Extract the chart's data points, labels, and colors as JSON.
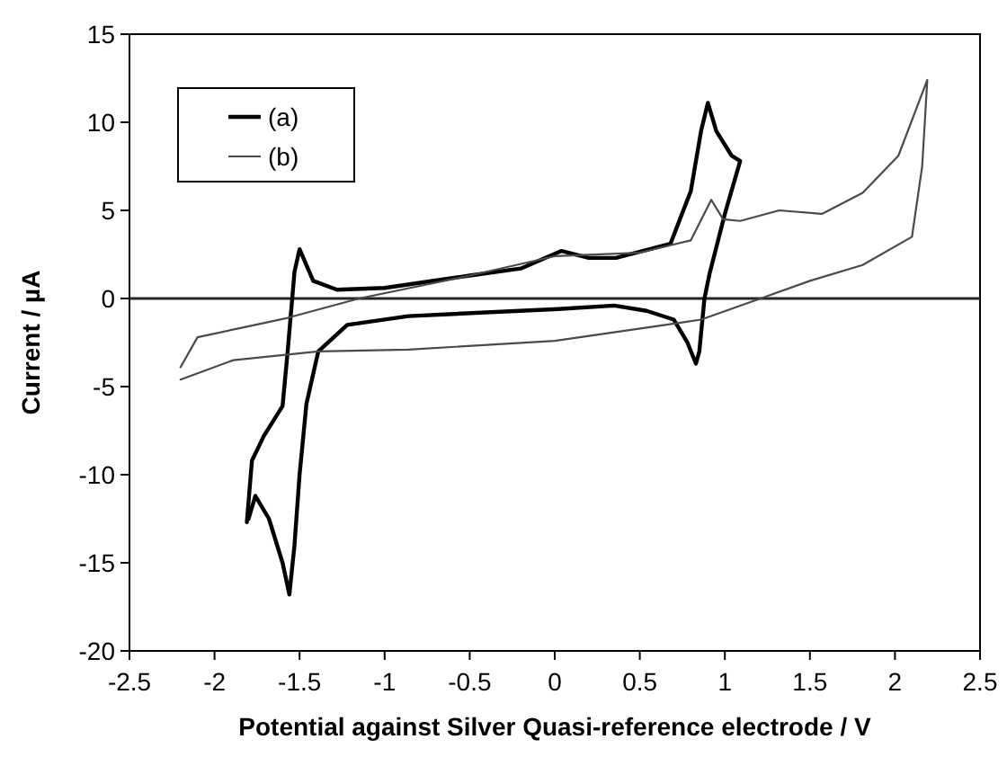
{
  "chart_data": {
    "type": "line",
    "xlabel": "Potential against Silver Quasi-reference electrode / V",
    "ylabel": "Current / µA",
    "xlim": [
      -2.5,
      2.5
    ],
    "xticks": [
      -2.5,
      -2,
      -1.5,
      -1,
      -0.5,
      0,
      0.5,
      1,
      1.5,
      2,
      2.5
    ],
    "ylim": [
      -20,
      15
    ],
    "yticks": [
      -20,
      -15,
      -10,
      -5,
      0,
      5,
      10,
      15
    ],
    "legend": "top left",
    "grid": false,
    "line_style": "solid",
    "ref_lines": [
      {
        "axis": "y",
        "value": 0,
        "color": "#262626"
      }
    ],
    "series": [
      {
        "name": "(a)",
        "color": "#000000",
        "x": [
          -1.81,
          -1.78,
          -1.71,
          -1.6,
          -1.57,
          -1.53,
          -1.5,
          -1.42,
          -1.28,
          -1.0,
          -0.5,
          -0.2,
          0.04,
          0.2,
          0.36,
          0.68,
          0.8,
          0.86,
          0.9,
          0.95,
          1.04,
          1.09,
          1.0,
          0.91,
          0.88,
          0.85,
          0.83,
          0.78,
          0.7,
          0.54,
          0.35,
          0.02,
          -0.86,
          -1.22,
          -1.39,
          -1.46,
          -1.5,
          -1.53,
          -1.56,
          -1.6,
          -1.68,
          -1.76,
          -1.8
        ],
        "values": [
          -12.7,
          -9.2,
          -7.8,
          -6.1,
          -3,
          1.5,
          2.8,
          1.0,
          0.5,
          0.6,
          1.3,
          1.7,
          2.7,
          2.3,
          2.3,
          3.1,
          6.1,
          9.5,
          11.1,
          9.5,
          8.1,
          7.8,
          4.8,
          1.4,
          0,
          -3,
          -3.7,
          -2.5,
          -1.2,
          -0.7,
          -0.4,
          -0.6,
          -1.0,
          -1.5,
          -3,
          -6,
          -10,
          -14,
          -16.8,
          -15,
          -12.5,
          -11.2,
          -12.5
        ]
      },
      {
        "name": "(b)",
        "color": "#4a4a4a",
        "x": [
          -2.2,
          -2.1,
          -1.86,
          -1.57,
          -1.15,
          -0.5,
          0,
          0.5,
          0.8,
          0.92,
          0.99,
          1.09,
          1.32,
          1.57,
          1.81,
          2.02,
          2.19,
          2.16,
          2.1,
          1.81,
          1.5,
          1.21,
          0.86,
          0.65,
          0,
          -0.86,
          -1.39,
          -1.89,
          -2.2
        ],
        "values": [
          -3.9,
          -2.2,
          -1.7,
          -1.1,
          0,
          1.3,
          2.4,
          2.6,
          3.3,
          5.6,
          4.5,
          4.4,
          5.0,
          4.8,
          6.0,
          8.1,
          12.4,
          7.5,
          3.5,
          1.9,
          1.0,
          0,
          -1.2,
          -1.5,
          -2.4,
          -2.9,
          -3.0,
          -3.5,
          -4.6
        ]
      }
    ]
  }
}
